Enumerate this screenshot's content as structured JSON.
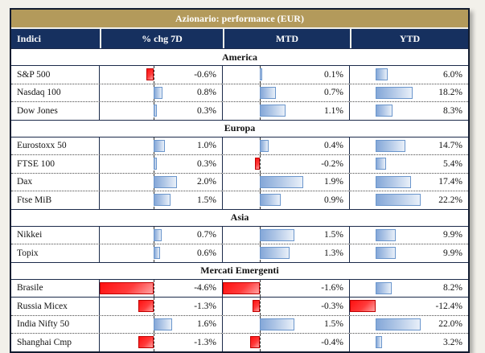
{
  "title": "Azionario: performance (EUR)",
  "table_headers": {
    "indici": "Indici",
    "chg7d": "% chg 7D",
    "mtd": "MTD",
    "ytd": "YTD"
  },
  "colors": {
    "title_bg": "#B39A5B",
    "header_bg": "#16305F",
    "positive_bar": "#84A7D8",
    "negative_bar": "#FF1010",
    "grid_line": "#1B2A4A"
  },
  "chart_data": {
    "type": "table",
    "title": "Azionario: performance (EUR)",
    "value_columns": [
      "% chg 7D",
      "MTD",
      "YTD"
    ],
    "value_format": "percent_one_decimal",
    "bar_style": "excel-databar, blue gradient positive, red gradient negative, dashed zero axis in 7D and MTD columns",
    "axes": {
      "chg7d": {
        "min": -4.6,
        "max": 2.0,
        "show_axis": true,
        "area_frac": 0.63
      },
      "mtd": {
        "min": -1.6,
        "max": 1.9,
        "show_axis": true,
        "area_frac": 0.64
      },
      "ytd": {
        "min": -12.4,
        "max": 22.2,
        "show_axis": false,
        "area_frac": 0.6
      }
    },
    "sections": [
      {
        "name": "America",
        "rows": [
          {
            "index": "S&P 500",
            "chg7d": -0.6,
            "mtd": 0.1,
            "ytd": 6.0
          },
          {
            "index": "Nasdaq 100",
            "chg7d": 0.8,
            "mtd": 0.7,
            "ytd": 18.2
          },
          {
            "index": "Dow Jones",
            "chg7d": 0.3,
            "mtd": 1.1,
            "ytd": 8.3
          }
        ]
      },
      {
        "name": "Europa",
        "rows": [
          {
            "index": "Eurostoxx 50",
            "chg7d": 1.0,
            "mtd": 0.4,
            "ytd": 14.7
          },
          {
            "index": "FTSE 100",
            "chg7d": 0.3,
            "mtd": -0.2,
            "ytd": 5.4
          },
          {
            "index": "Dax",
            "chg7d": 2.0,
            "mtd": 1.9,
            "ytd": 17.4
          },
          {
            "index": "Ftse MiB",
            "chg7d": 1.5,
            "mtd": 0.9,
            "ytd": 22.2
          }
        ]
      },
      {
        "name": "Asia",
        "rows": [
          {
            "index": "Nikkei",
            "chg7d": 0.7,
            "mtd": 1.5,
            "ytd": 9.9
          },
          {
            "index": "Topix",
            "chg7d": 0.6,
            "mtd": 1.3,
            "ytd": 9.9
          }
        ]
      },
      {
        "name": "Mercati Emergenti",
        "rows": [
          {
            "index": "Brasile",
            "chg7d": -4.6,
            "mtd": -1.6,
            "ytd": 8.2
          },
          {
            "index": "Russia Micex",
            "chg7d": -1.3,
            "mtd": -0.3,
            "ytd": -12.4,
            "solid_top": true
          },
          {
            "index": "India Nifty 50",
            "chg7d": 1.6,
            "mtd": 1.5,
            "ytd": 22.0
          },
          {
            "index": "Shanghai Cmp",
            "chg7d": -1.3,
            "mtd": -0.4,
            "ytd": 3.2
          }
        ]
      }
    ]
  }
}
